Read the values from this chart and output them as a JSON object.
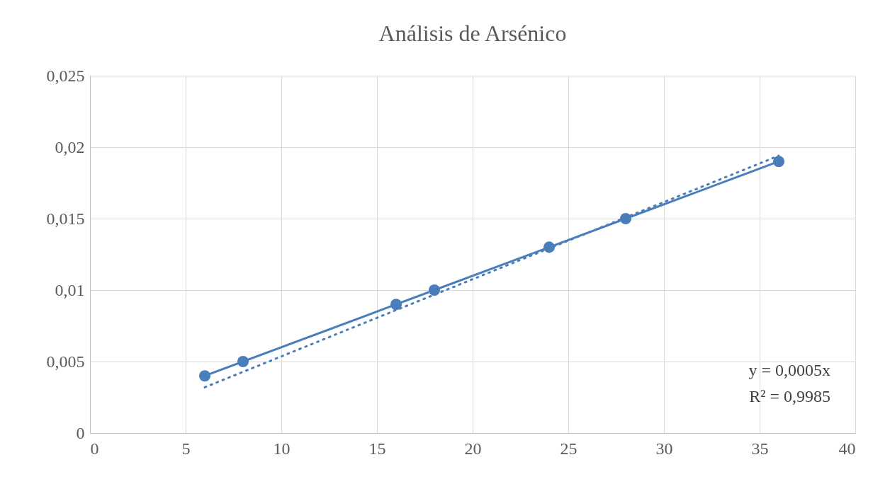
{
  "chart_data": {
    "type": "line",
    "title": "Análisis de Arsénico",
    "series": [
      {
        "marker": "circle",
        "line_style": "solid",
        "color": "#4a7ebb",
        "x": [
          6,
          8,
          16,
          18,
          24,
          28,
          36
        ],
        "values": [
          0.004,
          0.005,
          0.009,
          0.01,
          0.013,
          0.015,
          0.019
        ]
      },
      {
        "marker": "none",
        "line_style": "dotted",
        "color": "#4a7ebb",
        "x": [
          6,
          36
        ],
        "values": [
          0.0032,
          0.0194
        ]
      }
    ],
    "xlim": [
      0,
      40
    ],
    "xticks": [
      0,
      5,
      10,
      15,
      20,
      25,
      30,
      35,
      40
    ],
    "ylim": [
      0,
      0.025
    ],
    "yticks": [
      0,
      {
        "value": 0.005,
        "label": "0,005"
      },
      {
        "value": 0.01,
        "label": "0,01"
      },
      {
        "value": 0.015,
        "label": "0,015"
      },
      {
        "value": 0.02,
        "label": "0,02"
      },
      {
        "value": 0.025,
        "label": "0,025"
      }
    ],
    "grid": true,
    "annotations": [
      "y = 0,0005x",
      "R² = 0,9985"
    ]
  }
}
